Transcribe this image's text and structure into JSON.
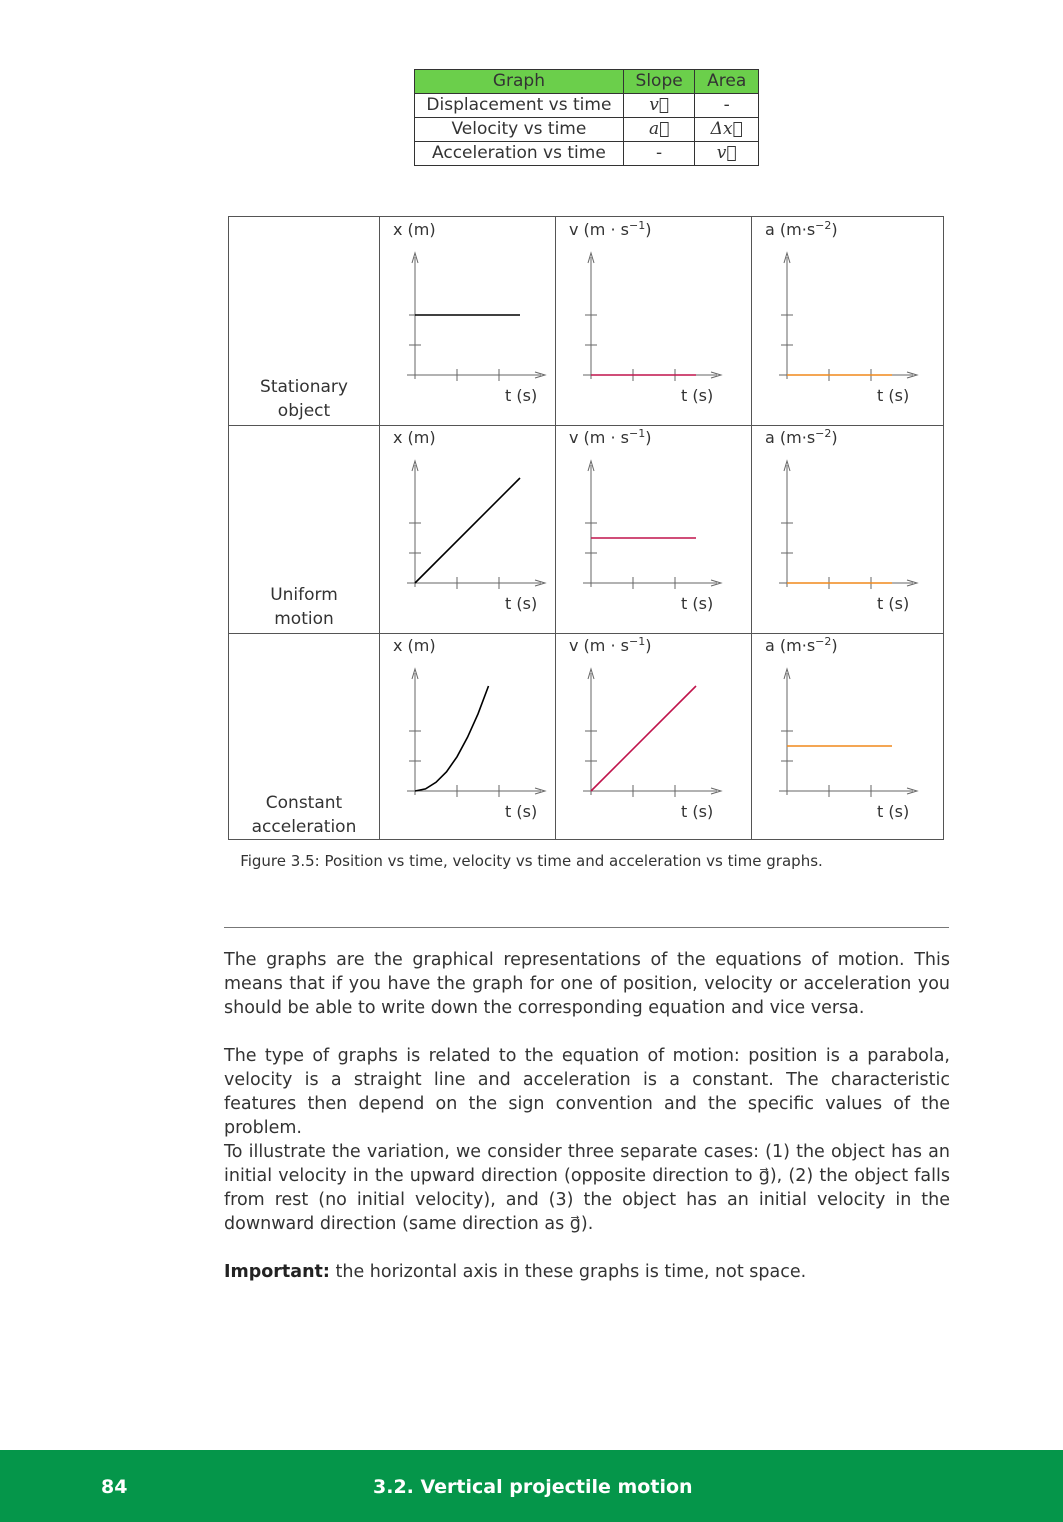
{
  "summary_table": {
    "headers": [
      "Graph",
      "Slope",
      "Area"
    ],
    "rows": [
      {
        "graph": "Displacement vs time",
        "slope": "v⃗",
        "area": "-"
      },
      {
        "graph": "Velocity vs time",
        "slope": "a⃗",
        "area": "Δx⃗"
      },
      {
        "graph": "Acceleration vs time",
        "slope": "-",
        "area": "v⃗"
      }
    ]
  },
  "figure": {
    "row_labels": [
      [
        "Stationary",
        "object"
      ],
      [
        "Uniform",
        "motion"
      ],
      [
        "Constant",
        "acceleration"
      ]
    ],
    "axis_labels": {
      "x_var": "x",
      "x_unit": "(m)",
      "v_var": "v",
      "v_unit_pre": "(m · s",
      "v_exp": "−1",
      "v_unit_post": ")",
      "a_var": "a",
      "a_unit_pre": "(m·s",
      "a_exp": "−2",
      "a_unit_post": ")",
      "t_var": "t",
      "t_unit": "(s)"
    },
    "colors": {
      "position": "#000000",
      "velocity": "#c0144c",
      "acceleration": "#f0891c",
      "axis": "#666666"
    },
    "caption": "Figure 3.5: Position vs time, velocity vs time and acceleration vs time graphs."
  },
  "chart_data": [
    {
      "type": "line",
      "title": "",
      "ylabel": "x (m)",
      "xlabel": "t (s)",
      "row": "Stationary object",
      "x": [
        0,
        2.5
      ],
      "y": [
        2,
        2
      ]
    },
    {
      "type": "line",
      "title": "",
      "ylabel": "v (m · s−1)",
      "xlabel": "t (s)",
      "row": "Stationary object",
      "x": [
        0,
        2.5
      ],
      "y": [
        0,
        0
      ]
    },
    {
      "type": "line",
      "title": "",
      "ylabel": "a (m·s−2)",
      "xlabel": "t (s)",
      "row": "Stationary object",
      "x": [
        0,
        2.5
      ],
      "y": [
        0,
        0
      ]
    },
    {
      "type": "line",
      "title": "",
      "ylabel": "x (m)",
      "xlabel": "t (s)",
      "row": "Uniform motion",
      "x": [
        0,
        2.5
      ],
      "y": [
        0,
        3.5
      ]
    },
    {
      "type": "line",
      "title": "",
      "ylabel": "v (m · s−1)",
      "xlabel": "t (s)",
      "row": "Uniform motion",
      "x": [
        0,
        2.5
      ],
      "y": [
        1.5,
        1.5
      ]
    },
    {
      "type": "line",
      "title": "",
      "ylabel": "a (m·s−2)",
      "xlabel": "t (s)",
      "row": "Uniform motion",
      "x": [
        0,
        2.5
      ],
      "y": [
        0,
        0
      ]
    },
    {
      "type": "line",
      "title": "",
      "ylabel": "x (m)",
      "xlabel": "t (s)",
      "row": "Constant acceleration",
      "x": [
        0,
        0.25,
        0.5,
        0.75,
        1.0,
        1.25,
        1.5,
        1.75
      ],
      "y": [
        0,
        0.07,
        0.29,
        0.64,
        1.14,
        1.79,
        2.57,
        3.5
      ]
    },
    {
      "type": "line",
      "title": "",
      "ylabel": "v (m · s−1)",
      "xlabel": "t (s)",
      "row": "Constant acceleration",
      "x": [
        0,
        2.5
      ],
      "y": [
        0,
        3.5
      ]
    },
    {
      "type": "line",
      "title": "",
      "ylabel": "a (m·s−2)",
      "xlabel": "t (s)",
      "row": "Constant acceleration",
      "x": [
        0,
        2.5
      ],
      "y": [
        1.5,
        1.5
      ]
    }
  ],
  "paragraphs": [
    {
      "text": "The graphs are the graphical representations of the equations of motion. This means that if you have the graph for one of position, velocity or acceleration you should be able to write down the corresponding equation and vice versa."
    },
    {
      "text": "The type of graphs is related to the equation of motion: position is a parabola, velocity is a straight line and acceleration is a constant. The characteristic features then depend on the sign convention and the specific values of the problem."
    },
    {
      "text": "To illustrate the variation, we consider three separate cases: (1) the object has an initial velocity in the upward direction (opposite direction to g⃗), (2) the object falls from rest (no initial velocity), and (3) the object has an initial velocity in the downward direction (same direction as g⃗)."
    },
    {
      "bold": "Important:",
      "text": " the horizontal axis in these graphs is time, not space."
    }
  ],
  "footer": {
    "page_number": "84",
    "section": "3.2.   Vertical projectile motion"
  }
}
